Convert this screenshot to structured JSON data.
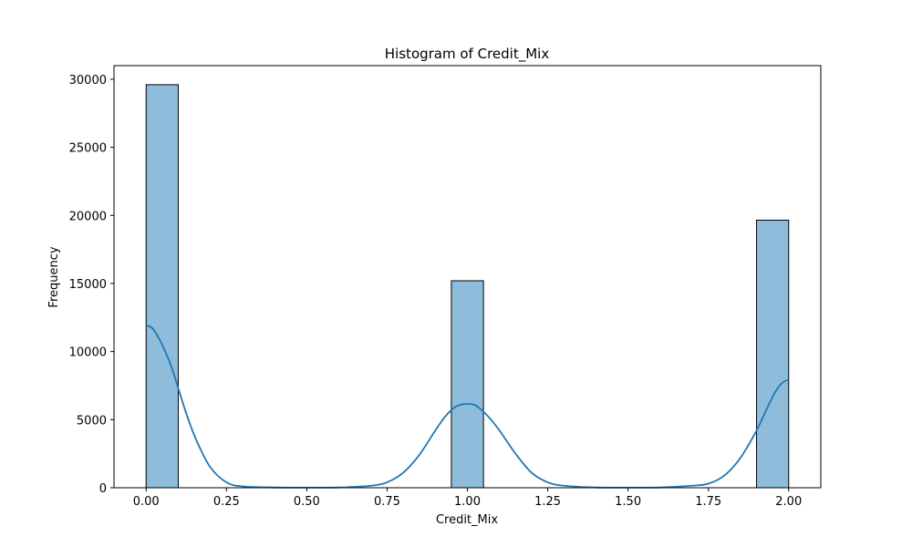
{
  "chart_data": {
    "type": "bar",
    "title": "Histogram of Credit_Mix",
    "xlabel": "Credit_Mix",
    "ylabel": "Frequency",
    "xlim": [
      -0.1,
      2.1
    ],
    "ylim": [
      0,
      31000
    ],
    "x_ticks": [
      0.0,
      0.25,
      0.5,
      0.75,
      1.0,
      1.25,
      1.5,
      1.75,
      2.0
    ],
    "x_tick_labels": [
      "0.00",
      "0.25",
      "0.50",
      "0.75",
      "1.00",
      "1.25",
      "1.50",
      "1.75",
      "2.00"
    ],
    "y_ticks": [
      0,
      5000,
      10000,
      15000,
      20000,
      25000,
      30000
    ],
    "y_tick_labels": [
      "0",
      "5000",
      "10000",
      "15000",
      "20000",
      "25000",
      "30000"
    ],
    "bins": [
      {
        "x_start": 0.0,
        "x_end": 0.1,
        "count": 29600
      },
      {
        "x_start": 0.95,
        "x_end": 1.05,
        "count": 15200
      },
      {
        "x_start": 1.9,
        "x_end": 2.0,
        "count": 19650
      }
    ],
    "kde": {
      "x": [
        0.0,
        0.02,
        0.05,
        0.08,
        0.1,
        0.13,
        0.16,
        0.2,
        0.25,
        0.3,
        0.4,
        0.5,
        0.6,
        0.7,
        0.75,
        0.8,
        0.85,
        0.9,
        0.93,
        0.96,
        0.98,
        1.0,
        1.02,
        1.04,
        1.07,
        1.1,
        1.15,
        1.2,
        1.25,
        1.3,
        1.4,
        1.5,
        1.6,
        1.7,
        1.75,
        1.8,
        1.85,
        1.9,
        1.93,
        1.96,
        1.98,
        2.0
      ],
      "y": [
        11900,
        11700,
        10500,
        8800,
        7300,
        5100,
        3300,
        1500,
        400,
        100,
        20,
        10,
        20,
        150,
        400,
        1100,
        2400,
        4200,
        5200,
        5900,
        6100,
        6150,
        6100,
        5800,
        5100,
        4200,
        2500,
        1100,
        400,
        150,
        20,
        10,
        20,
        150,
        300,
        900,
        2200,
        4200,
        5700,
        7100,
        7700,
        7950
      ]
    },
    "colors": {
      "bar_fill": "#8fbcdb",
      "bar_edge": "#000000",
      "kde_line": "#1f77b4"
    },
    "grid": false,
    "legend": "none"
  }
}
